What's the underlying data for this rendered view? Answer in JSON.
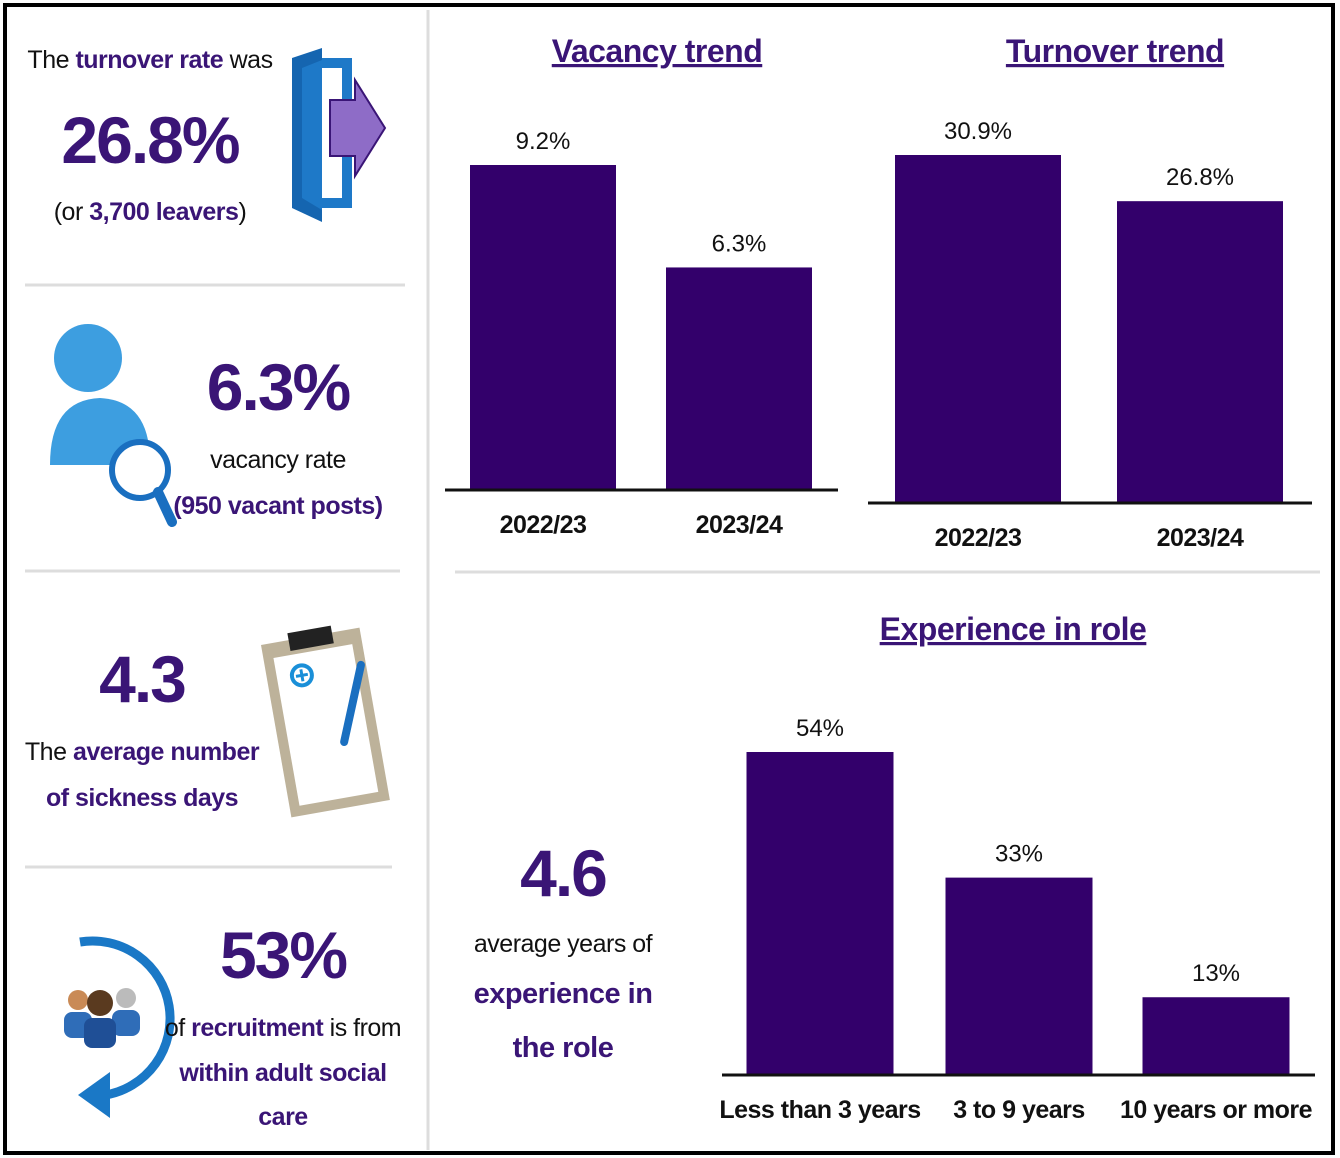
{
  "panels": [
    {
      "stat": "26.8%",
      "lines": [
        [
          {
            "text": "The "
          },
          {
            "text": "turnover rate",
            "highlight": true
          },
          {
            "text": " was"
          }
        ],
        [
          {
            "text": "(or "
          },
          {
            "text": "3,700 leavers",
            "highlight": true
          },
          {
            "text": ")"
          }
        ]
      ]
    },
    {
      "stat": "6.3%",
      "lines": [
        [
          {
            "text": "vacancy rate"
          }
        ],
        [
          {
            "text": "(950 vacant posts)",
            "highlight": true
          }
        ]
      ]
    },
    {
      "stat": "4.3",
      "lines": [
        [
          {
            "text": "The "
          },
          {
            "text": "average number",
            "highlight": true
          }
        ],
        [
          {
            "text": "of sickness days",
            "highlight": true
          }
        ]
      ]
    },
    {
      "stat": "53%",
      "lines": [
        [
          {
            "text": "of "
          },
          {
            "text": "recruitment",
            "highlight": true
          },
          {
            "text": " is from"
          }
        ],
        [
          {
            "text": "within adult social",
            "highlight": true
          }
        ],
        [
          {
            "text": "care",
            "highlight": true
          }
        ]
      ]
    },
    {
      "stat": "4.6",
      "lines": [
        [
          {
            "text": "average years of"
          }
        ],
        [
          {
            "text": "experience in",
            "highlight": true
          }
        ],
        [
          {
            "text": "the role",
            "highlight": true
          }
        ]
      ]
    }
  ],
  "chart_data": [
    {
      "type": "bar",
      "title": "Vacancy trend",
      "categories": [
        "2022/23",
        "2023/24"
      ],
      "values": [
        9.2,
        6.3
      ],
      "value_labels": [
        "9.2%",
        "6.3%"
      ],
      "color": "#33006b"
    },
    {
      "type": "bar",
      "title": "Turnover trend",
      "categories": [
        "2022/23",
        "2023/24"
      ],
      "values": [
        30.9,
        26.8
      ],
      "value_labels": [
        "30.9%",
        "26.8%"
      ],
      "color": "#33006b"
    },
    {
      "type": "bar",
      "title": "Experience in role",
      "categories": [
        "Less than 3 years",
        "3 to 9 years",
        "10 years or more"
      ],
      "values": [
        54,
        33,
        13
      ],
      "value_labels": [
        "54%",
        "33%",
        "13%"
      ],
      "color": "#33006b"
    }
  ]
}
